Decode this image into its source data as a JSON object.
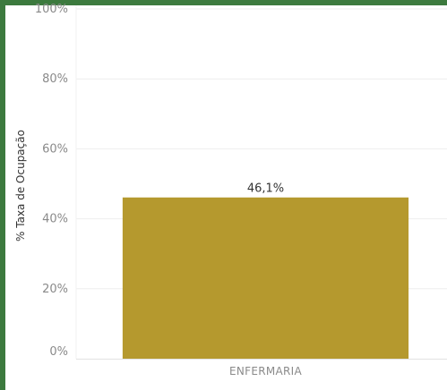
{
  "colors": {
    "frame": "#3c7a3e",
    "bar": "#b5992e",
    "grid": "#eeeeee"
  },
  "chart_data": {
    "type": "bar",
    "categories": [
      "ENFERMARIA"
    ],
    "values": [
      46.1
    ],
    "data_labels": [
      "46,1%"
    ],
    "ylabel": "% Taxa de Ocupação",
    "ylim": [
      0,
      100
    ],
    "yticks": [
      0,
      20,
      40,
      60,
      80,
      100
    ],
    "ytick_labels": [
      "0%",
      "20%",
      "40%",
      "60%",
      "80%",
      "100%"
    ],
    "grid": true,
    "legend": "none"
  }
}
